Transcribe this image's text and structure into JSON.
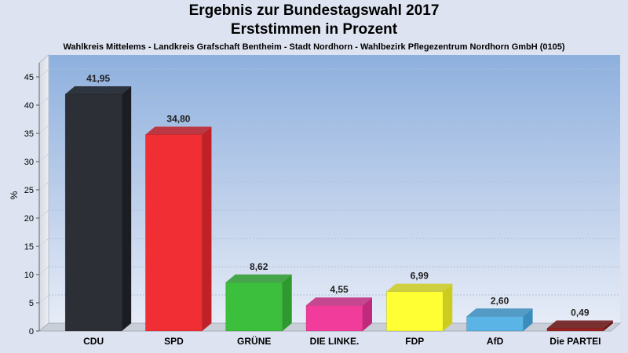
{
  "chart_data": {
    "type": "bar",
    "title": "Ergebnis zur Bundestagswahl 2017",
    "title_line2": "Erststimmen in Prozent",
    "subtitle": "Wahlkreis Mittelems - Landkreis Grafschaft Bentheim - Stadt Nordhorn - Wahlbezirk Pflegezentrum Nordhorn GmbH (0105)",
    "ylabel": "%",
    "xlabel": "",
    "ylim": [
      0,
      47.5
    ],
    "yticks": [
      0,
      5,
      10,
      15,
      20,
      25,
      30,
      35,
      40,
      45
    ],
    "grid": true,
    "legend": "none",
    "categories": [
      "CDU",
      "SPD",
      "GRÜNE",
      "DIE LINKE.",
      "FDP",
      "AfD",
      "Die PARTEI"
    ],
    "values": [
      41.95,
      34.8,
      8.62,
      4.55,
      6.99,
      2.6,
      0.49
    ],
    "value_labels": [
      "41,95",
      "34,80",
      "8,62",
      "4,55",
      "6,99",
      "2,60",
      "0,49"
    ],
    "colors": [
      "#2c2f35",
      "#f02e34",
      "#3cbf3c",
      "#f23c9c",
      "#ffff33",
      "#5ab4e6",
      "#9a2222"
    ],
    "side_colors": [
      "#1b1d22",
      "#c02026",
      "#2c9a2c",
      "#c02a7c",
      "#cccc20",
      "#3a8cbc",
      "#6a1414"
    ]
  }
}
